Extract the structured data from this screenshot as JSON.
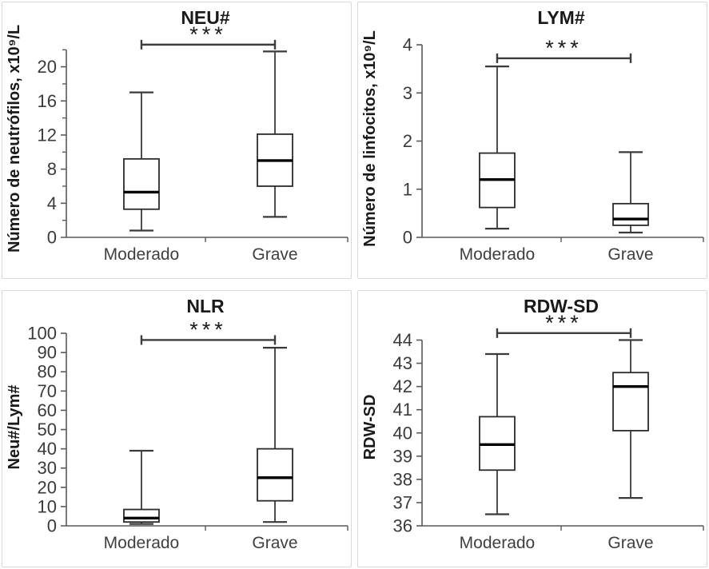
{
  "figure": {
    "background": "#ffffff",
    "panel_border_color": "#d9d9d9",
    "axis_color": "#595959",
    "box_line_color": "#2b2b2b",
    "median_color": "#000000",
    "text_color": "#3a3a3a",
    "groups": [
      "Moderado",
      "Grave"
    ],
    "significance_label": "***"
  },
  "chart_data": [
    {
      "type": "boxplot",
      "title": "NEU#",
      "ylabel": "Número de neutrófilos, x10⁹/L",
      "xlabel": "",
      "categories": [
        "Moderado",
        "Grave"
      ],
      "ylim": [
        0,
        22
      ],
      "yticks": [
        0,
        4,
        8,
        12,
        16,
        20
      ],
      "yticks_minor": [
        2,
        6,
        10,
        14,
        18,
        22
      ],
      "grid": false,
      "legend": "none",
      "boxes": [
        {
          "category": "Moderado",
          "whisker_low": 0.8,
          "q1": 3.3,
          "median": 5.3,
          "q3": 9.2,
          "whisker_high": 17.0
        },
        {
          "category": "Grave",
          "whisker_low": 2.4,
          "q1": 6.0,
          "median": 9.0,
          "q3": 12.1,
          "whisker_high": 21.8
        }
      ],
      "significance": {
        "label": "***",
        "from": "Moderado",
        "to": "Grave",
        "y": 22.6
      }
    },
    {
      "type": "boxplot",
      "title": "LYM#",
      "ylabel": "Número de linfocitos, x10⁹/L",
      "xlabel": "",
      "categories": [
        "Moderado",
        "Grave"
      ],
      "ylim": [
        0,
        4
      ],
      "yticks": [
        0,
        1,
        2,
        3,
        4
      ],
      "yticks_minor": [],
      "grid": false,
      "legend": "none",
      "boxes": [
        {
          "category": "Moderado",
          "whisker_low": 0.18,
          "q1": 0.62,
          "median": 1.2,
          "q3": 1.75,
          "whisker_high": 3.55
        },
        {
          "category": "Grave",
          "whisker_low": 0.1,
          "q1": 0.25,
          "median": 0.38,
          "q3": 0.7,
          "whisker_high": 1.77
        }
      ],
      "significance": {
        "label": "***",
        "from": "Moderado",
        "to": "Grave",
        "y": 3.72
      }
    },
    {
      "type": "boxplot",
      "title": "NLR",
      "ylabel": "Neu#/Lym#",
      "xlabel": "",
      "categories": [
        "Moderado",
        "Grave"
      ],
      "ylim": [
        0,
        100
      ],
      "yticks": [
        0,
        10,
        20,
        30,
        40,
        50,
        60,
        70,
        80,
        90,
        100
      ],
      "yticks_minor": [],
      "grid": false,
      "legend": "none",
      "boxes": [
        {
          "category": "Moderado",
          "whisker_low": 1,
          "q1": 2,
          "median": 4,
          "q3": 8.5,
          "whisker_high": 39
        },
        {
          "category": "Grave",
          "whisker_low": 2,
          "q1": 13,
          "median": 25,
          "q3": 40,
          "whisker_high": 92.5
        }
      ],
      "significance": {
        "label": "***",
        "from": "Moderado",
        "to": "Grave",
        "y": 96.5
      }
    },
    {
      "type": "boxplot",
      "title": "RDW-SD",
      "ylabel": "RDW-SD",
      "xlabel": "",
      "categories": [
        "Moderado",
        "Grave"
      ],
      "ylim": [
        36,
        44
      ],
      "yticks": [
        36,
        37,
        38,
        39,
        40,
        41,
        42,
        43,
        44
      ],
      "yticks_minor": [],
      "grid": false,
      "legend": "none",
      "boxes": [
        {
          "category": "Moderado",
          "whisker_low": 36.5,
          "q1": 38.4,
          "median": 39.5,
          "q3": 40.7,
          "whisker_high": 43.4
        },
        {
          "category": "Grave",
          "whisker_low": 37.2,
          "q1": 40.1,
          "median": 42.0,
          "q3": 42.6,
          "whisker_high": 44.0
        }
      ],
      "significance": {
        "label": "***",
        "from": "Moderado",
        "to": "Grave",
        "y": 44.3
      }
    }
  ]
}
